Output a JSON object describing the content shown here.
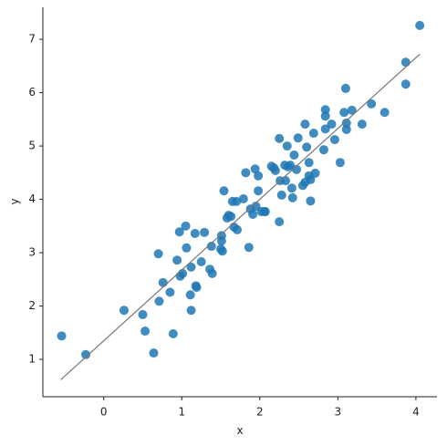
{
  "chart_data": {
    "type": "scatter",
    "x_label": "x",
    "y_label": "y",
    "color": "#1f77b4",
    "x": [
      -0.54,
      -0.23,
      0.26,
      0.5,
      0.53,
      0.64,
      0.7,
      0.71,
      0.76,
      0.85,
      0.89,
      0.94,
      0.97,
      0.98,
      1.01,
      1.05,
      1.06,
      1.11,
      1.12,
      1.12,
      1.17,
      1.18,
      1.19,
      1.25,
      1.29,
      1.36,
      1.38,
      1.39,
      1.5,
      1.51,
      1.51,
      1.52,
      1.54,
      1.58,
      1.6,
      1.63,
      1.65,
      1.67,
      1.7,
      1.71,
      1.79,
      1.82,
      1.86,
      1.88,
      1.91,
      1.94,
      1.95,
      1.98,
      1.98,
      2.02,
      2.06,
      2.07,
      2.15,
      2.18,
      2.2,
      2.25,
      2.25,
      2.26,
      2.28,
      2.32,
      2.33,
      2.35,
      2.36,
      2.39,
      2.41,
      2.42,
      2.44,
      2.47,
      2.49,
      2.55,
      2.58,
      2.58,
      2.6,
      2.63,
      2.63,
      2.65,
      2.65,
      2.69,
      2.71,
      2.82,
      2.84,
      2.84,
      2.84,
      2.92,
      2.96,
      3.03,
      3.08,
      3.1,
      3.11,
      3.11,
      3.18,
      3.31,
      3.43,
      3.6,
      3.87,
      3.87,
      4.05
    ],
    "values": [
      1.44,
      1.09,
      1.92,
      1.84,
      1.53,
      1.12,
      2.98,
      2.09,
      2.44,
      2.26,
      1.48,
      2.86,
      3.39,
      2.56,
      2.61,
      3.5,
      3.09,
      2.21,
      1.92,
      2.73,
      3.36,
      2.38,
      2.35,
      2.83,
      3.38,
      2.69,
      3.12,
      2.61,
      3.07,
      3.22,
      3.32,
      3.03,
      4.16,
      3.65,
      3.7,
      3.68,
      3.96,
      3.48,
      3.96,
      3.43,
      4.01,
      4.5,
      3.1,
      3.82,
      3.72,
      4.57,
      3.87,
      4.16,
      4.44,
      3.77,
      3.77,
      3.77,
      4.62,
      4.59,
      4.54,
      5.14,
      3.58,
      4.35,
      4.08,
      4.64,
      4.35,
      5.0,
      4.61,
      4.64,
      4.21,
      4.03,
      4.83,
      4.56,
      5.15,
      4.26,
      5.41,
      4.32,
      4.98,
      4.69,
      4.44,
      3.97,
      4.37,
      5.24,
      4.49,
      4.93,
      5.68,
      5.56,
      5.32,
      5.41,
      5.12,
      4.69,
      5.63,
      6.08,
      5.43,
      5.31,
      5.67,
      5.41,
      5.79,
      5.63,
      6.16,
      6.57,
      7.26
    ],
    "fit": {
      "x": [
        -0.55,
        4.05
      ],
      "y": [
        0.62,
        6.72
      ],
      "color": "#777777"
    },
    "xlim": [
      -0.78,
      4.27
    ],
    "ylim": [
      0.3,
      7.6
    ],
    "xticks": [
      0,
      1,
      2,
      3,
      4
    ],
    "yticks": [
      1,
      2,
      3,
      4,
      5,
      6,
      7
    ]
  }
}
